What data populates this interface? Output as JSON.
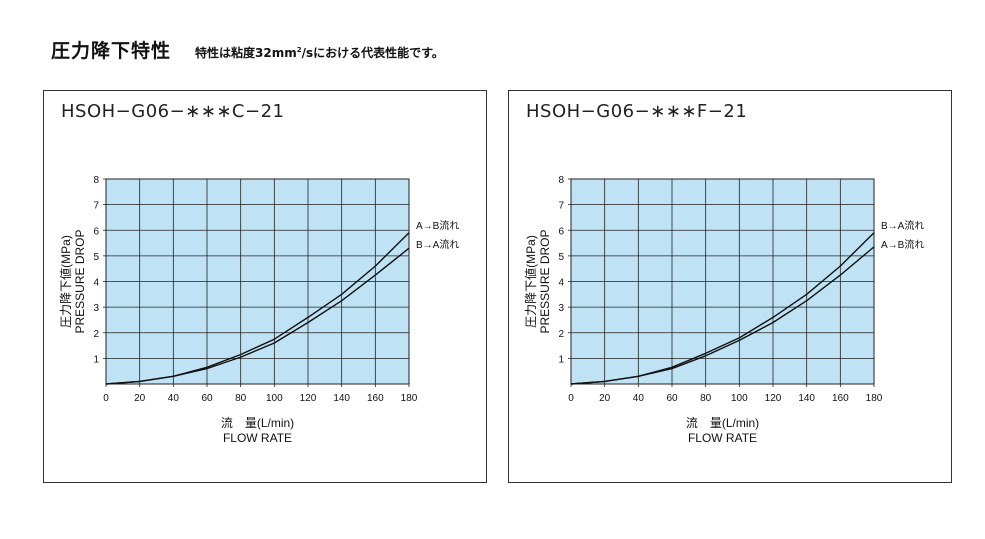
{
  "header": {
    "title": "圧力降下特性",
    "note_prefix": "特性は粘度32mm",
    "note_sup": "2",
    "note_suffix": "/sにおける代表性能です。"
  },
  "colors": {
    "plot_background": "#bfe2f5",
    "grid": "#222222",
    "curve": "#111111"
  },
  "chart_data": [
    {
      "type": "line",
      "title": "HSOH−G06−∗∗∗C−21",
      "xlabel": "流　量(L/min)",
      "xlabel2": "FLOW RATE",
      "ylabel": "圧力降下値(MPa)",
      "ylabel2": "PRESSURE DROP",
      "xlim": [
        0,
        180
      ],
      "ylim": [
        0,
        8
      ],
      "x_ticks": [
        0,
        20,
        40,
        60,
        80,
        100,
        120,
        140,
        160,
        180
      ],
      "y_ticks": [
        1,
        2,
        3,
        4,
        5,
        6,
        7,
        8
      ],
      "grid": true,
      "series": [
        {
          "name": "A→B流れ",
          "x": [
            0,
            20,
            40,
            60,
            80,
            100,
            120,
            140,
            160,
            180
          ],
          "y": [
            0,
            0.1,
            0.3,
            0.65,
            1.15,
            1.75,
            2.6,
            3.5,
            4.6,
            5.9
          ]
        },
        {
          "name": "B→A流れ",
          "x": [
            0,
            20,
            40,
            60,
            80,
            100,
            120,
            140,
            160,
            180
          ],
          "y": [
            0,
            0.1,
            0.3,
            0.6,
            1.05,
            1.6,
            2.4,
            3.25,
            4.25,
            5.3
          ]
        }
      ]
    },
    {
      "type": "line",
      "title": "HSOH−G06−∗∗∗F−21",
      "xlabel": "流　量(L/min)",
      "xlabel2": "FLOW RATE",
      "ylabel": "圧力降下値(MPa)",
      "ylabel2": "PRESSURE DROP",
      "xlim": [
        0,
        180
      ],
      "ylim": [
        0,
        8
      ],
      "x_ticks": [
        0,
        20,
        40,
        60,
        80,
        100,
        120,
        140,
        160,
        180
      ],
      "y_ticks": [
        1,
        2,
        3,
        4,
        5,
        6,
        7,
        8
      ],
      "grid": true,
      "series": [
        {
          "name": "B→A流れ",
          "x": [
            0,
            20,
            40,
            60,
            80,
            100,
            120,
            140,
            160,
            180
          ],
          "y": [
            0,
            0.1,
            0.3,
            0.65,
            1.2,
            1.8,
            2.6,
            3.5,
            4.6,
            5.9
          ]
        },
        {
          "name": "A→B流れ",
          "x": [
            0,
            20,
            40,
            60,
            80,
            100,
            120,
            140,
            160,
            180
          ],
          "y": [
            0,
            0.1,
            0.3,
            0.6,
            1.1,
            1.7,
            2.4,
            3.25,
            4.25,
            5.35
          ]
        }
      ]
    }
  ]
}
